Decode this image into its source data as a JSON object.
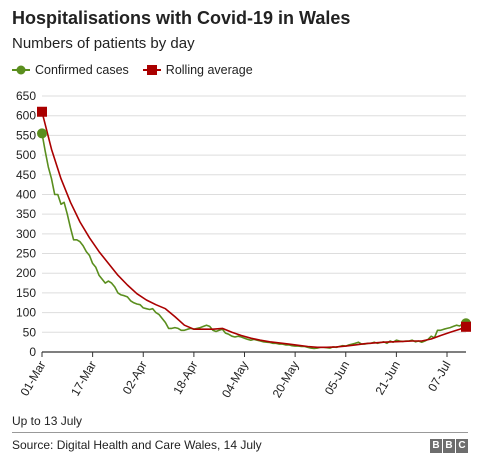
{
  "title": "Hospitalisations with Covid-19 in Wales",
  "subtitle": "Numbers of patients by day",
  "footnote": "Up to 13 July",
  "source": "Source: Digital Health and Care Wales, 14 July",
  "logo": [
    "B",
    "B",
    "C"
  ],
  "colors": {
    "confirmed": "#5a8e1e",
    "rolling": "#aa0000",
    "axis": "#333333",
    "grid": "#dddddd"
  },
  "chart_data": {
    "type": "line",
    "title": "Hospitalisations with Covid-19 in Wales",
    "subtitle": "Numbers of patients by day",
    "ylim": [
      0,
      650
    ],
    "y_ticks": [
      0,
      50,
      100,
      150,
      200,
      250,
      300,
      350,
      400,
      450,
      500,
      550,
      600,
      650
    ],
    "x_range": [
      "2021-03-01",
      "2021-07-13"
    ],
    "x_ticks": [
      {
        "date": "2021-03-01",
        "label": "01-Mar"
      },
      {
        "date": "2021-03-17",
        "label": "17-Mar"
      },
      {
        "date": "2021-04-02",
        "label": "02-Apr"
      },
      {
        "date": "2021-04-18",
        "label": "18-Apr"
      },
      {
        "date": "2021-05-04",
        "label": "04-May"
      },
      {
        "date": "2021-05-20",
        "label": "20-May"
      },
      {
        "date": "2021-06-05",
        "label": "05-Jun"
      },
      {
        "date": "2021-06-21",
        "label": "21-Jun"
      },
      {
        "date": "2021-07-07",
        "label": "07-Jul"
      }
    ],
    "grid": "horizontal",
    "legend_position": "top-left",
    "series": [
      {
        "name": "Confirmed cases",
        "marker": "circle",
        "points": [
          [
            "2021-03-01",
            555
          ],
          [
            "2021-03-02",
            510
          ],
          [
            "2021-03-03",
            470
          ],
          [
            "2021-03-04",
            440
          ],
          [
            "2021-03-05",
            400
          ],
          [
            "2021-03-06",
            400
          ],
          [
            "2021-03-07",
            375
          ],
          [
            "2021-03-08",
            380
          ],
          [
            "2021-03-09",
            350
          ],
          [
            "2021-03-10",
            315
          ],
          [
            "2021-03-11",
            285
          ],
          [
            "2021-03-12",
            285
          ],
          [
            "2021-03-13",
            280
          ],
          [
            "2021-03-14",
            270
          ],
          [
            "2021-03-15",
            255
          ],
          [
            "2021-03-16",
            245
          ],
          [
            "2021-03-17",
            225
          ],
          [
            "2021-03-18",
            215
          ],
          [
            "2021-03-19",
            195
          ],
          [
            "2021-03-20",
            185
          ],
          [
            "2021-03-21",
            175
          ],
          [
            "2021-03-22",
            180
          ],
          [
            "2021-03-23",
            175
          ],
          [
            "2021-03-24",
            165
          ],
          [
            "2021-03-25",
            150
          ],
          [
            "2021-03-26",
            145
          ],
          [
            "2021-03-27",
            143
          ],
          [
            "2021-03-28",
            140
          ],
          [
            "2021-03-29",
            130
          ],
          [
            "2021-03-30",
            125
          ],
          [
            "2021-03-31",
            122
          ],
          [
            "2021-04-01",
            120
          ],
          [
            "2021-04-02",
            112
          ],
          [
            "2021-04-03",
            110
          ],
          [
            "2021-04-04",
            108
          ],
          [
            "2021-04-05",
            110
          ],
          [
            "2021-04-06",
            100
          ],
          [
            "2021-04-07",
            95
          ],
          [
            "2021-04-08",
            85
          ],
          [
            "2021-04-09",
            75
          ],
          [
            "2021-04-10",
            60
          ],
          [
            "2021-04-11",
            60
          ],
          [
            "2021-04-12",
            62
          ],
          [
            "2021-04-13",
            60
          ],
          [
            "2021-04-14",
            55
          ],
          [
            "2021-04-15",
            55
          ],
          [
            "2021-04-16",
            58
          ],
          [
            "2021-04-17",
            60
          ],
          [
            "2021-04-18",
            58
          ],
          [
            "2021-04-19",
            60
          ],
          [
            "2021-04-20",
            62
          ],
          [
            "2021-04-21",
            65
          ],
          [
            "2021-04-22",
            68
          ],
          [
            "2021-04-23",
            65
          ],
          [
            "2021-04-24",
            55
          ],
          [
            "2021-04-25",
            52
          ],
          [
            "2021-04-26",
            55
          ],
          [
            "2021-04-27",
            58
          ],
          [
            "2021-04-28",
            48
          ],
          [
            "2021-04-29",
            45
          ],
          [
            "2021-04-30",
            40
          ],
          [
            "2021-05-01",
            38
          ],
          [
            "2021-05-02",
            40
          ],
          [
            "2021-05-03",
            38
          ],
          [
            "2021-05-04",
            35
          ],
          [
            "2021-05-05",
            32
          ],
          [
            "2021-05-06",
            30
          ],
          [
            "2021-05-07",
            32
          ],
          [
            "2021-05-08",
            30
          ],
          [
            "2021-05-09",
            28
          ],
          [
            "2021-05-10",
            26
          ],
          [
            "2021-05-11",
            25
          ],
          [
            "2021-05-12",
            24
          ],
          [
            "2021-05-13",
            22
          ],
          [
            "2021-05-14",
            22
          ],
          [
            "2021-05-15",
            20
          ],
          [
            "2021-05-16",
            20
          ],
          [
            "2021-05-17",
            18
          ],
          [
            "2021-05-18",
            18
          ],
          [
            "2021-05-19",
            16
          ],
          [
            "2021-05-20",
            15
          ],
          [
            "2021-05-21",
            15
          ],
          [
            "2021-05-22",
            14
          ],
          [
            "2021-05-23",
            14
          ],
          [
            "2021-05-24",
            12
          ],
          [
            "2021-05-25",
            10
          ],
          [
            "2021-05-26",
            9
          ],
          [
            "2021-05-27",
            10
          ],
          [
            "2021-05-28",
            12
          ],
          [
            "2021-05-29",
            12
          ],
          [
            "2021-05-30",
            11
          ],
          [
            "2021-05-31",
            10
          ],
          [
            "2021-06-01",
            13
          ],
          [
            "2021-06-02",
            12
          ],
          [
            "2021-06-03",
            14
          ],
          [
            "2021-06-04",
            16
          ],
          [
            "2021-06-05",
            15
          ],
          [
            "2021-06-06",
            18
          ],
          [
            "2021-06-07",
            20
          ],
          [
            "2021-06-08",
            22
          ],
          [
            "2021-06-09",
            25
          ],
          [
            "2021-06-10",
            20
          ],
          [
            "2021-06-11",
            20
          ],
          [
            "2021-06-12",
            22
          ],
          [
            "2021-06-13",
            22
          ],
          [
            "2021-06-14",
            25
          ],
          [
            "2021-06-15",
            22
          ],
          [
            "2021-06-16",
            24
          ],
          [
            "2021-06-17",
            26
          ],
          [
            "2021-06-18",
            22
          ],
          [
            "2021-06-19",
            28
          ],
          [
            "2021-06-20",
            25
          ],
          [
            "2021-06-21",
            30
          ],
          [
            "2021-06-22",
            28
          ],
          [
            "2021-06-23",
            27
          ],
          [
            "2021-06-24",
            28
          ],
          [
            "2021-06-25",
            28
          ],
          [
            "2021-06-26",
            30
          ],
          [
            "2021-06-27",
            26
          ],
          [
            "2021-06-28",
            28
          ],
          [
            "2021-06-29",
            25
          ],
          [
            "2021-06-30",
            28
          ],
          [
            "2021-07-01",
            32
          ],
          [
            "2021-07-02",
            40
          ],
          [
            "2021-07-03",
            36
          ],
          [
            "2021-07-04",
            55
          ],
          [
            "2021-07-05",
            55
          ],
          [
            "2021-07-06",
            58
          ],
          [
            "2021-07-07",
            60
          ],
          [
            "2021-07-08",
            62
          ],
          [
            "2021-07-09",
            65
          ],
          [
            "2021-07-10",
            68
          ],
          [
            "2021-07-11",
            66
          ],
          [
            "2021-07-12",
            72
          ],
          [
            "2021-07-13",
            73
          ]
        ]
      },
      {
        "name": "Rolling average",
        "marker": "square",
        "points": [
          [
            "2021-03-01",
            610
          ],
          [
            "2021-03-04",
            515
          ],
          [
            "2021-03-07",
            440
          ],
          [
            "2021-03-10",
            380
          ],
          [
            "2021-03-13",
            330
          ],
          [
            "2021-03-16",
            290
          ],
          [
            "2021-03-19",
            255
          ],
          [
            "2021-03-22",
            225
          ],
          [
            "2021-03-25",
            195
          ],
          [
            "2021-03-28",
            170
          ],
          [
            "2021-03-31",
            148
          ],
          [
            "2021-04-03",
            132
          ],
          [
            "2021-04-06",
            120
          ],
          [
            "2021-04-09",
            110
          ],
          [
            "2021-04-12",
            90
          ],
          [
            "2021-04-15",
            68
          ],
          [
            "2021-04-18",
            58
          ],
          [
            "2021-04-21",
            58
          ],
          [
            "2021-04-24",
            58
          ],
          [
            "2021-04-27",
            60
          ],
          [
            "2021-04-30",
            50
          ],
          [
            "2021-05-03",
            42
          ],
          [
            "2021-05-06",
            35
          ],
          [
            "2021-05-09",
            30
          ],
          [
            "2021-05-12",
            26
          ],
          [
            "2021-05-15",
            23
          ],
          [
            "2021-05-18",
            20
          ],
          [
            "2021-05-21",
            17
          ],
          [
            "2021-05-24",
            14
          ],
          [
            "2021-05-27",
            12
          ],
          [
            "2021-05-30",
            12
          ],
          [
            "2021-06-02",
            13
          ],
          [
            "2021-06-05",
            15
          ],
          [
            "2021-06-08",
            18
          ],
          [
            "2021-06-11",
            21
          ],
          [
            "2021-06-14",
            23
          ],
          [
            "2021-06-17",
            25
          ],
          [
            "2021-06-20",
            26
          ],
          [
            "2021-06-23",
            27
          ],
          [
            "2021-06-26",
            28
          ],
          [
            "2021-06-29",
            28
          ],
          [
            "2021-07-02",
            33
          ],
          [
            "2021-07-05",
            42
          ],
          [
            "2021-07-08",
            50
          ],
          [
            "2021-07-11",
            58
          ],
          [
            "2021-07-13",
            64
          ]
        ]
      }
    ]
  }
}
